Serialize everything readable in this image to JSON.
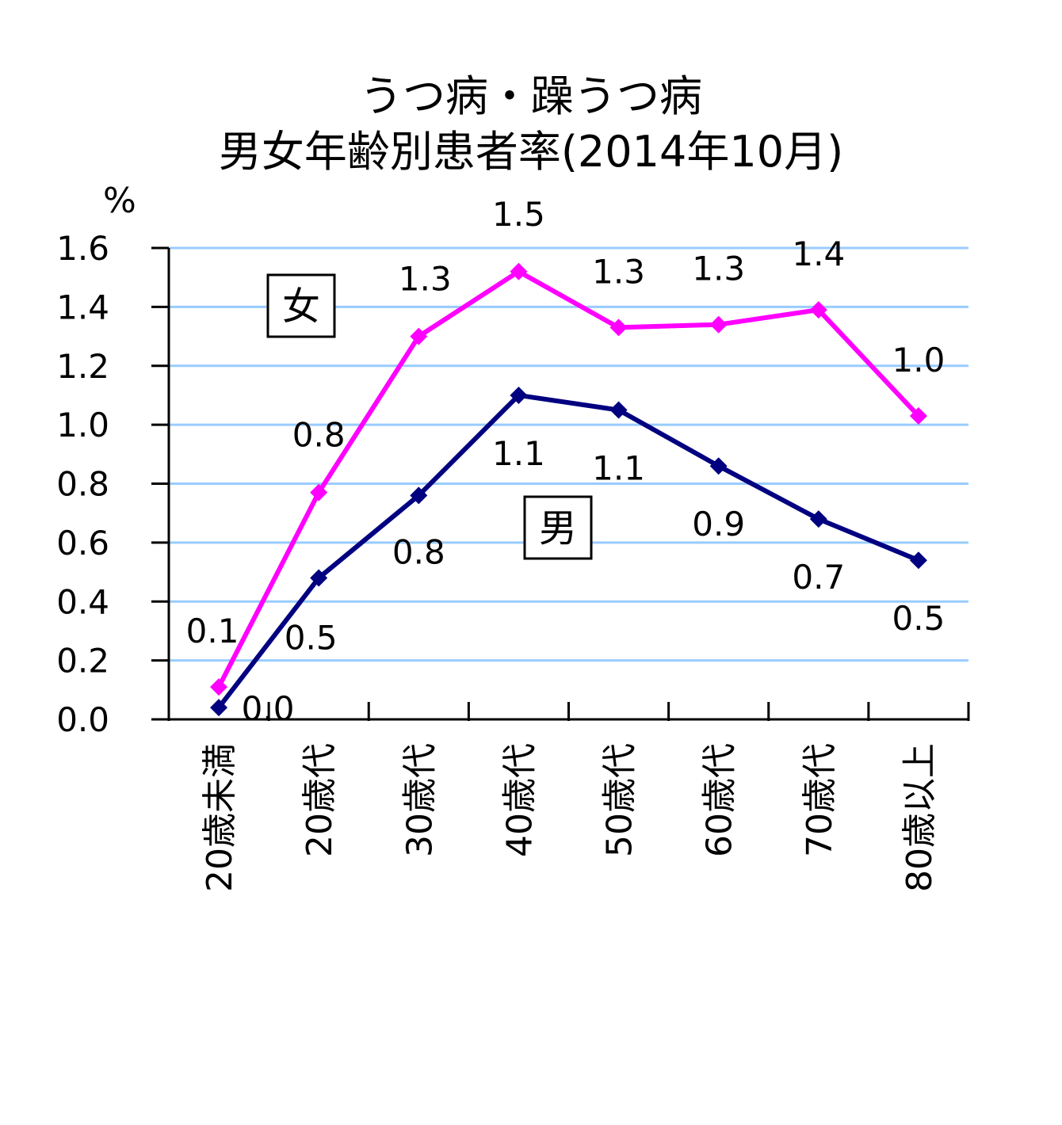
{
  "chart_data": {
    "type": "line",
    "title": [
      "うつ病・躁うつ病",
      "男女年齢別患者率(2014年10月)"
    ],
    "ylabel": "%",
    "ylim": [
      0,
      1.6
    ],
    "yticks": [
      "0.0",
      "0.2",
      "0.4",
      "0.6",
      "0.8",
      "1.0",
      "1.2",
      "1.4",
      "1.6"
    ],
    "grid": true,
    "categories": [
      "20歳未満",
      "20歳代",
      "30歳代",
      "40歳代",
      "50歳代",
      "60歳代",
      "70歳代",
      "80歳以上"
    ],
    "series": [
      {
        "name": "女",
        "color": "#ff00ff",
        "values": [
          0.11,
          0.77,
          1.3,
          1.52,
          1.33,
          1.34,
          1.39,
          1.03
        ],
        "labels": [
          "0.1",
          "0.8",
          "1.3",
          "1.5",
          "1.3",
          "1.3",
          "1.4",
          "1.0"
        ]
      },
      {
        "name": "男",
        "color": "#000080",
        "values": [
          0.04,
          0.48,
          0.76,
          1.1,
          1.05,
          0.86,
          0.68,
          0.54
        ],
        "labels": [
          "0.0",
          "0.5",
          "0.8",
          "1.1",
          "1.1",
          "0.9",
          "0.7",
          "0.5"
        ]
      }
    ]
  }
}
